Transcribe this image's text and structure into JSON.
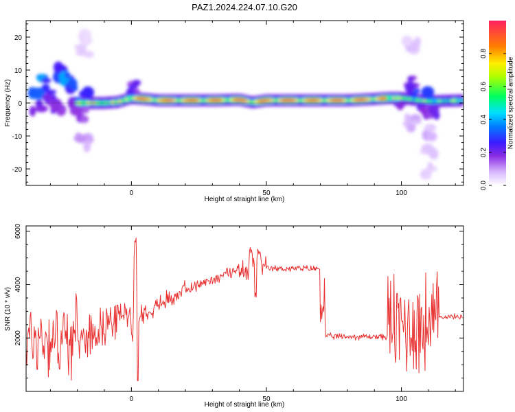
{
  "title": "PAZ1.2024.224.07.10.G20",
  "chart_data": [
    {
      "type": "heatmap",
      "title": "PAZ1.2024.224.07.10.G20",
      "xlabel": "Height of straight line (km)",
      "ylabel": "Frequency (Hz)",
      "xlim": [
        -39,
        123
      ],
      "ylim": [
        -25,
        25
      ],
      "x_ticks": [
        "0",
        "50",
        "100"
      ],
      "y_ticks": [
        "20",
        "10",
        "0",
        "-10",
        "-20"
      ],
      "colorbar": {
        "label": "Normalized spectral amplitude",
        "range": [
          0,
          1
        ],
        "ticks": [
          "0.0",
          "0.2",
          "0.4",
          "0.6",
          "0.8"
        ]
      },
      "ridge": {
        "x": [
          -20,
          -15,
          -10,
          -5,
          0,
          5,
          10,
          20,
          30,
          40,
          45,
          50,
          60,
          70,
          80,
          90,
          95,
          100,
          110,
          123
        ],
        "y": [
          0,
          0,
          0,
          0.3,
          1.5,
          1.2,
          0.8,
          0.8,
          0.8,
          1.0,
          0.2,
          0.8,
          0.8,
          0.8,
          0.8,
          1.2,
          1.5,
          1.5,
          0.5,
          0.8
        ]
      },
      "blobs": [
        {
          "x": -35,
          "y": 4,
          "v": 0.3
        },
        {
          "x": -33,
          "y": 6,
          "v": 0.35
        },
        {
          "x": -30,
          "y": 2,
          "v": 0.25
        },
        {
          "x": -27,
          "y": 9,
          "v": 0.3
        },
        {
          "x": -24,
          "y": 7,
          "v": 0.35
        },
        {
          "x": -22,
          "y": 4,
          "v": 0.3
        },
        {
          "x": -35,
          "y": -1,
          "v": 0.25
        },
        {
          "x": -28,
          "y": -1,
          "v": 0.2
        },
        {
          "x": -19,
          "y": -4,
          "v": 0.2
        },
        {
          "x": -18,
          "y": -12,
          "v": 0.1
        },
        {
          "x": -18,
          "y": 20,
          "v": 0.05
        },
        {
          "x": -17,
          "y": 15,
          "v": 0.05
        },
        {
          "x": -18,
          "y": 2,
          "v": 0.25
        },
        {
          "x": 0,
          "y": 5,
          "v": 0.2
        },
        {
          "x": 103,
          "y": 7,
          "v": 0.2
        },
        {
          "x": 105,
          "y": 3,
          "v": 0.3
        },
        {
          "x": 108,
          "y": -2,
          "v": 0.25
        },
        {
          "x": 110,
          "y": 2,
          "v": 0.3
        },
        {
          "x": 112,
          "y": -3,
          "v": 0.2
        },
        {
          "x": 104,
          "y": -6,
          "v": 0.1
        },
        {
          "x": 111,
          "y": -9,
          "v": 0.08
        },
        {
          "x": 111,
          "y": -14,
          "v": 0.06
        },
        {
          "x": 110,
          "y": -21,
          "v": 0.06
        },
        {
          "x": 104,
          "y": 17,
          "v": 0.06
        },
        {
          "x": 98,
          "y": -1,
          "v": 0.2
        }
      ]
    },
    {
      "type": "line",
      "xlabel": "Height of straight line (km)",
      "ylabel": "SNR (10 * v/v)",
      "xlim": [
        -39,
        123
      ],
      "ylim": [
        0,
        6200
      ],
      "x_ticks": [
        "0",
        "50",
        "100"
      ],
      "y_ticks": [
        "6000",
        "4000",
        "2000"
      ],
      "color": "#e83030",
      "segments": [
        {
          "from": -39,
          "to": -20,
          "base": 2000,
          "noise": 1700
        },
        {
          "from": -20,
          "to": -5,
          "base": 2600,
          "noise": 900
        },
        {
          "from": -5,
          "to": 0,
          "base": 2900,
          "noise": 500
        },
        {
          "from": 0,
          "to": 3,
          "base": 3200,
          "noise": 2500
        },
        {
          "from": 3,
          "to": 20,
          "base": 3400,
          "noise": 450
        },
        {
          "from": 20,
          "to": 40,
          "base": 4300,
          "noise": 250
        },
        {
          "from": 40,
          "to": 50,
          "base": 4600,
          "noise": 500
        },
        {
          "from": 50,
          "to": 70,
          "base": 4600,
          "noise": 150
        },
        {
          "from": 70,
          "to": 72,
          "base": 3300,
          "noise": 1300
        },
        {
          "from": 72,
          "to": 95,
          "base": 2050,
          "noise": 150
        },
        {
          "from": 95,
          "to": 114,
          "base": 2500,
          "noise": 2400
        },
        {
          "from": 114,
          "to": 123,
          "base": 2800,
          "noise": 120
        }
      ]
    }
  ]
}
